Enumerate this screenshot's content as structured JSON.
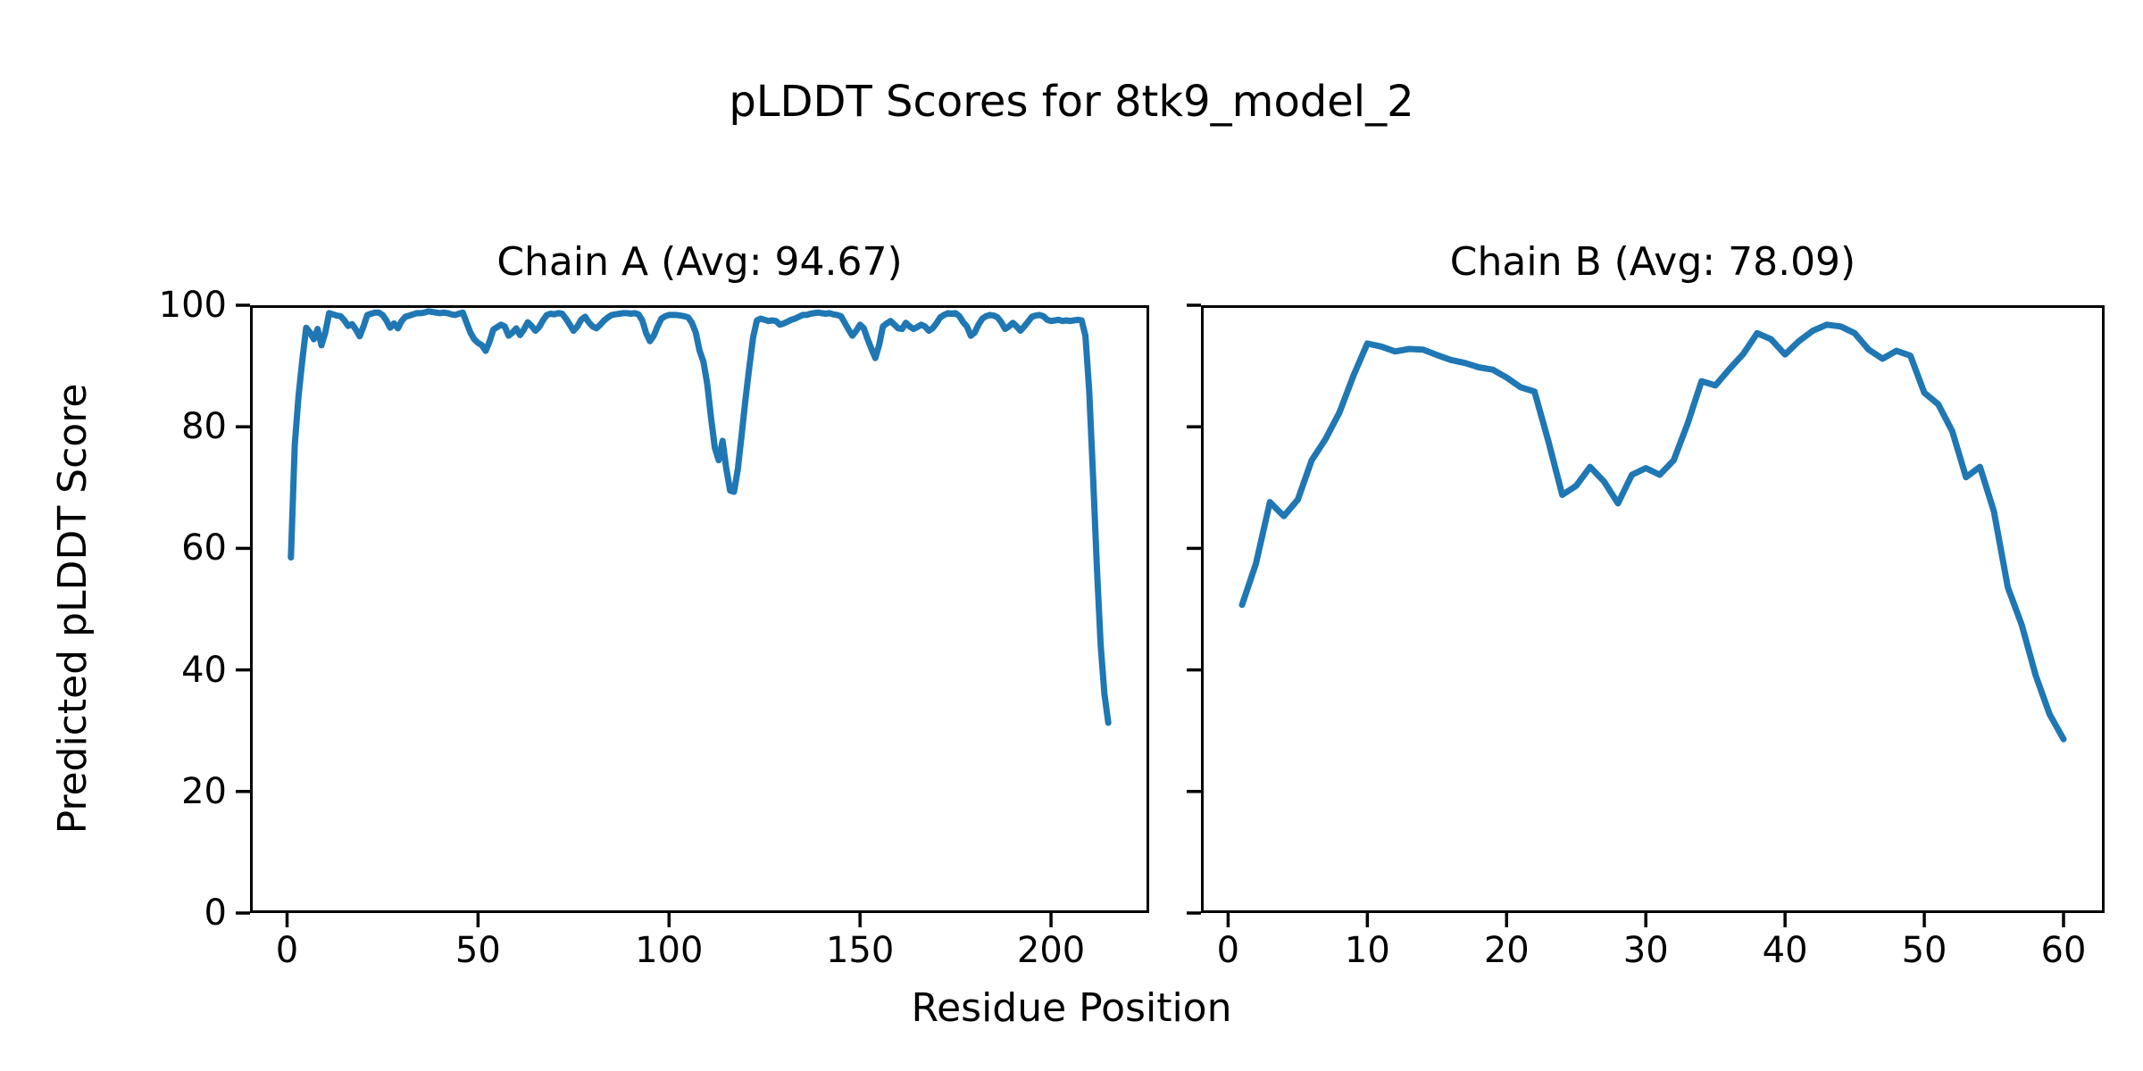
{
  "figure": {
    "suptitle": "pLDDT Scores for 8tk9_model_2",
    "xlabel": "Residue Position",
    "ylabel": "Predicted pLDDT Score",
    "background_color": "#ffffff",
    "text_color": "#000000"
  },
  "chart_data": [
    {
      "id": "chain-a",
      "type": "line",
      "title": "Chain A (Avg: 94.67)",
      "average_plddt": 94.67,
      "line_color": "#1f77b4",
      "x_start": 1,
      "xlim": [
        -9.7,
        225.7
      ],
      "ylim": [
        0,
        100
      ],
      "xticks": [
        0,
        50,
        100,
        150,
        200
      ],
      "yticks": [
        0,
        20,
        40,
        60,
        80,
        100
      ],
      "ytick_labels": true,
      "values": [
        58.5,
        77,
        85,
        91,
        96.3,
        95.5,
        94.4,
        96.1,
        93.4,
        95.5,
        98.7,
        98.5,
        98.3,
        98.2,
        97.5,
        96.6,
        96.9,
        96,
        94.9,
        96.5,
        98.4,
        98.6,
        98.8,
        98.8,
        98.4,
        97.5,
        96.3,
        97,
        96.2,
        97.4,
        98.1,
        98.3,
        98.5,
        98.7,
        98.7,
        98.8,
        99,
        98.9,
        98.8,
        98.7,
        98.8,
        98.7,
        98.5,
        98.4,
        98.6,
        98.8,
        97.1,
        95.5,
        94.4,
        93.8,
        93.4,
        92.5,
        94,
        96,
        96.4,
        96.8,
        96.5,
        95,
        95.5,
        96.2,
        95.1,
        96,
        97.2,
        96.6,
        95.8,
        96.4,
        97.5,
        98.4,
        98.6,
        98.5,
        98.7,
        98.6,
        97.8,
        96.8,
        95.8,
        96.5,
        97.6,
        98.1,
        97.2,
        96.5,
        96.2,
        96.8,
        97.5,
        98,
        98.4,
        98.5,
        98.6,
        98.7,
        98.7,
        98.6,
        98.7,
        98.5,
        97.5,
        95.4,
        94.1,
        95,
        96.5,
        97.8,
        98.2,
        98.4,
        98.4,
        98.4,
        98.3,
        98.2,
        98,
        97.1,
        95.5,
        92.5,
        90.7,
        87,
        81.5,
        76.5,
        74.5,
        77.7,
        73.1,
        69.5,
        69.3,
        73,
        78.7,
        84.4,
        89.7,
        94.7,
        97.5,
        97.8,
        97.6,
        97.4,
        97.5,
        97.4,
        96.8,
        97,
        97.3,
        97.6,
        97.8,
        98.1,
        98.4,
        98.4,
        98.6,
        98.7,
        98.8,
        98.7,
        98.6,
        98.7,
        98.5,
        98.4,
        98.2,
        97.1,
        96,
        95,
        95.8,
        96.8,
        96.2,
        94.4,
        92.8,
        91.3,
        93.5,
        96.5,
        97,
        97.4,
        96.8,
        96.2,
        96.1,
        97.1,
        96.5,
        96.1,
        96.4,
        96.8,
        96.5,
        95.8,
        96.2,
        97,
        98,
        98.4,
        98.7,
        98.6,
        98.7,
        98.2,
        97.2,
        96.5,
        95,
        95.5,
        96.8,
        97.8,
        98.2,
        98.4,
        98.3,
        98,
        97.2,
        96.1,
        96.5,
        97.1,
        96.5,
        95.8,
        96.5,
        97.3,
        98.1,
        98.3,
        98.4,
        98.2,
        97.6,
        97.4,
        97.5,
        97.6,
        97.4,
        97.5,
        97.4,
        97.5,
        97.6,
        97.5,
        95,
        86,
        72,
        57,
        44,
        36,
        31.3
      ]
    },
    {
      "id": "chain-b",
      "type": "line",
      "title": "Chain B (Avg: 78.09)",
      "average_plddt": 78.09,
      "line_color": "#1f77b4",
      "x_start": 1,
      "xlim": [
        -1.95,
        62.95
      ],
      "ylim": [
        0,
        100
      ],
      "xticks": [
        0,
        10,
        20,
        30,
        40,
        50,
        60
      ],
      "yticks": [
        0,
        20,
        40,
        60,
        80,
        100
      ],
      "ytick_labels": false,
      "values": [
        50.7,
        57.5,
        67.6,
        65.3,
        68,
        74.5,
        78,
        82.4,
        88.4,
        93.7,
        93.2,
        92.4,
        92.8,
        92.7,
        91.8,
        91,
        90.5,
        89.8,
        89.4,
        88.1,
        86.5,
        85.8,
        77.6,
        68.8,
        70.3,
        73.4,
        71,
        67.4,
        72.1,
        73.2,
        72.1,
        74.5,
        80.5,
        87.5,
        86.8,
        89.5,
        92,
        95.4,
        94.4,
        91.9,
        94.1,
        95.8,
        96.8,
        96.5,
        95.4,
        92.7,
        91.2,
        92.5,
        91.7,
        85.6,
        83.7,
        79.3,
        71.7,
        73.4,
        66.1,
        53.6,
        47.4,
        39.1,
        32.7,
        28.6
      ]
    }
  ]
}
